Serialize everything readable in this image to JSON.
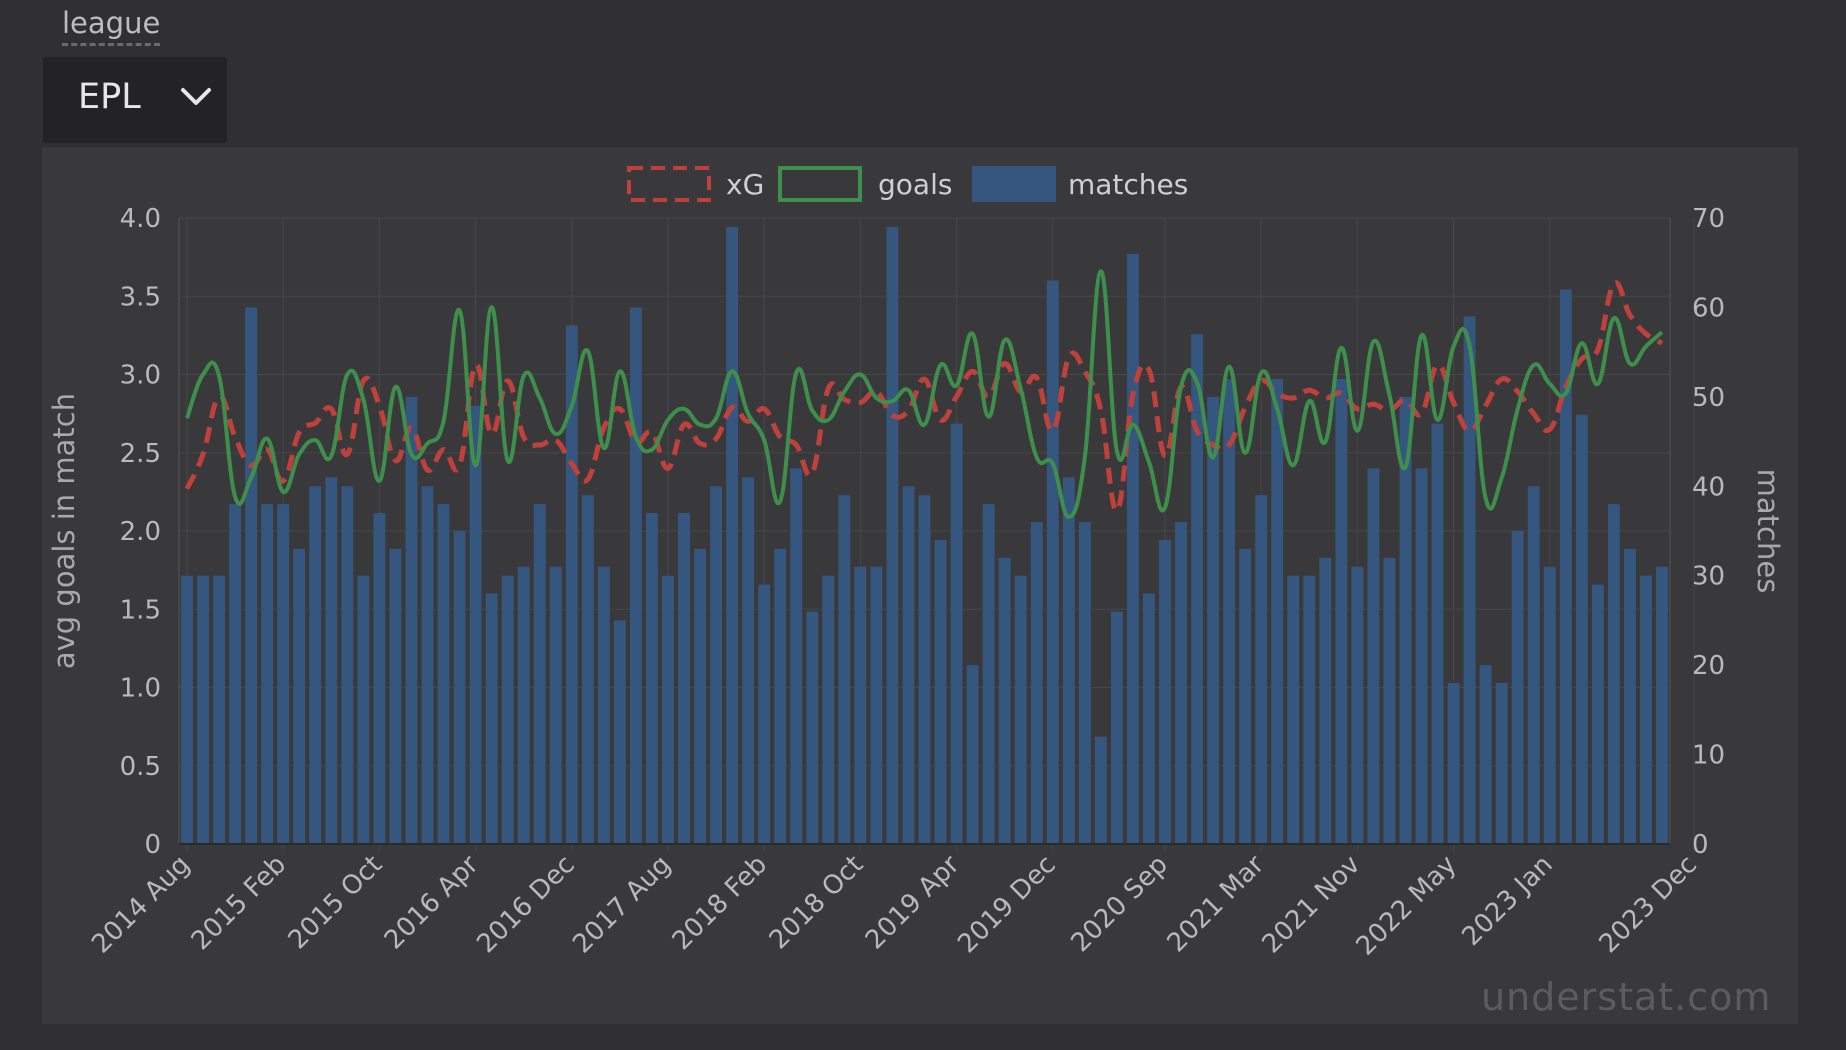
{
  "filter": {
    "label": "league",
    "selected": "EPL",
    "toggle_icon": "chevron-down-icon"
  },
  "watermark": "understat.com",
  "colors": {
    "xg": "#c0403c",
    "goals": "#3f8f4c",
    "matches": "#35577f",
    "background": "#39393b"
  },
  "chart_data": {
    "type": "bar",
    "y_left_label": "avg goals in match",
    "y_right_label": "matches",
    "y_left_range": [
      0,
      4.0
    ],
    "y_right_range": [
      0,
      70
    ],
    "y_left_ticks": [
      "0",
      "0.5",
      "1.0",
      "1.5",
      "2.0",
      "2.5",
      "3.0",
      "3.5",
      "4.0"
    ],
    "y_right_ticks": [
      "0",
      "10",
      "20",
      "30",
      "40",
      "50",
      "60",
      "70"
    ],
    "x_tick_labels": [
      "2014 Aug",
      "2015 Feb",
      "2015 Oct",
      "2016 Apr",
      "2016 Dec",
      "2017 Aug",
      "2018 Feb",
      "2018 Oct",
      "2019 Apr",
      "2019 Dec",
      "2020 Sep",
      "2021 Mar",
      "2021 Nov",
      "2022 May",
      "2023 Jan",
      "2023 Dec"
    ],
    "x_tick_index": [
      0,
      6,
      12,
      18,
      24,
      30,
      36,
      42,
      48,
      54,
      61,
      67,
      73,
      79,
      85,
      94
    ],
    "grid": true,
    "legend": {
      "position": "top",
      "items": [
        {
          "key": "xg",
          "label": "xG",
          "style": "dashed-line"
        },
        {
          "key": "goals",
          "label": "goals",
          "style": "line"
        },
        {
          "key": "matches",
          "label": "matches",
          "style": "bar"
        }
      ]
    },
    "series": [
      {
        "name": "matches",
        "axis": "right",
        "type": "bar",
        "values": [
          30,
          30,
          30,
          38,
          60,
          38,
          38,
          33,
          40,
          41,
          40,
          30,
          37,
          33,
          50,
          40,
          38,
          35,
          49,
          28,
          30,
          31,
          38,
          31,
          58,
          39,
          31,
          25,
          60,
          37,
          30,
          37,
          33,
          40,
          69,
          41,
          29,
          33,
          42,
          26,
          30,
          39,
          31,
          31,
          69,
          40,
          39,
          34,
          47,
          20,
          38,
          32,
          30,
          36,
          63,
          41,
          36,
          12,
          26,
          66,
          28,
          34,
          36,
          57,
          50,
          52,
          33,
          39,
          52,
          30,
          30,
          32,
          52,
          31,
          42,
          32,
          50,
          42,
          47,
          18,
          59,
          20,
          18,
          35,
          40,
          31,
          62,
          48,
          29,
          38,
          33,
          30,
          31
        ]
      },
      {
        "name": "xG",
        "axis": "left",
        "type": "line",
        "values": [
          2.27,
          2.49,
          2.86,
          2.6,
          2.42,
          2.52,
          2.32,
          2.63,
          2.69,
          2.78,
          2.49,
          2.96,
          2.8,
          2.45,
          2.66,
          2.39,
          2.52,
          2.42,
          3.06,
          2.62,
          2.96,
          2.6,
          2.55,
          2.58,
          2.43,
          2.33,
          2.66,
          2.78,
          2.57,
          2.63,
          2.4,
          2.68,
          2.56,
          2.59,
          2.79,
          2.7,
          2.78,
          2.6,
          2.55,
          2.37,
          2.91,
          2.84,
          2.82,
          2.89,
          2.74,
          2.77,
          2.97,
          2.71,
          2.86,
          3.02,
          2.86,
          3.07,
          2.89,
          2.98,
          2.64,
          3.11,
          3.02,
          2.77,
          2.13,
          2.87,
          3.03,
          2.48,
          2.92,
          2.64,
          2.55,
          2.55,
          2.79,
          2.96,
          2.88,
          2.85,
          2.9,
          2.85,
          2.88,
          2.78,
          2.81,
          2.77,
          2.84,
          2.75,
          3.06,
          2.82,
          2.64,
          2.8,
          2.97,
          2.89,
          2.75,
          2.65,
          2.92,
          3.1,
          3.16,
          3.58,
          3.38,
          3.26,
          3.2
        ]
      },
      {
        "name": "goals",
        "axis": "left",
        "type": "line",
        "values": [
          2.72,
          3.0,
          2.99,
          2.22,
          2.34,
          2.59,
          2.25,
          2.49,
          2.58,
          2.48,
          3.0,
          2.84,
          2.32,
          2.92,
          2.49,
          2.56,
          2.7,
          3.41,
          2.42,
          3.43,
          2.45,
          2.99,
          2.85,
          2.62,
          2.8,
          3.15,
          2.53,
          3.02,
          2.6,
          2.52,
          2.71,
          2.78,
          2.68,
          2.72,
          3.02,
          2.75,
          2.58,
          2.19,
          3.01,
          2.77,
          2.71,
          2.89,
          3.0,
          2.85,
          2.83,
          2.9,
          2.68,
          3.06,
          2.93,
          3.26,
          2.73,
          3.22,
          2.91,
          2.47,
          2.43,
          2.09,
          2.47,
          3.66,
          2.51,
          2.68,
          2.44,
          2.15,
          2.92,
          2.95,
          2.47,
          3.05,
          2.5,
          3.01,
          2.78,
          2.42,
          2.83,
          2.57,
          3.17,
          2.64,
          3.21,
          2.87,
          2.41,
          3.25,
          2.71,
          3.18,
          3.18,
          2.21,
          2.34,
          2.78,
          3.06,
          2.94,
          2.88,
          3.2,
          2.94,
          3.36,
          3.07,
          3.18,
          3.27
        ]
      }
    ]
  }
}
